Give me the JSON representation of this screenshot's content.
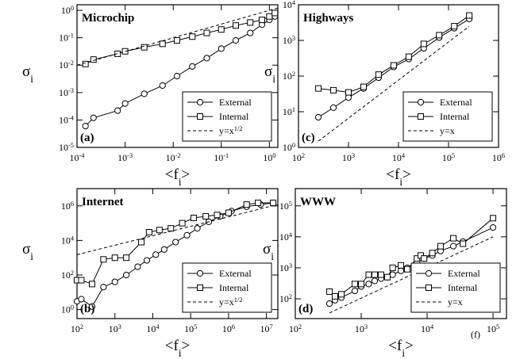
{
  "chart_data": [
    {
      "type": "line",
      "title": "Microchip",
      "panel_label": "(a)",
      "x_label": "<f_{i}>",
      "y_label": "σ_{i}",
      "xscale": "log",
      "yscale": "log",
      "legend": "lower right",
      "xlim": [
        0.0001,
        1.5
      ],
      "ylim": [
        1e-05,
        1.6
      ],
      "xticks": [
        {
          "value": 0.0001,
          "label": "10^{-4}"
        },
        {
          "value": 0.001,
          "label": "10^{-3}"
        },
        {
          "value": 0.01,
          "label": "10^{-2}"
        },
        {
          "value": 0.1,
          "label": "10^{-1}"
        },
        {
          "value": 1,
          "label": "10^{0}"
        }
      ],
      "yticks": [
        {
          "value": 1e-05,
          "label": "10^{-5}"
        },
        {
          "value": 0.0001,
          "label": "10^{-4}"
        },
        {
          "value": 0.001,
          "label": "10^{-3}"
        },
        {
          "value": 0.01,
          "label": "10^{-2}"
        },
        {
          "value": 0.1,
          "label": "10^{-1}"
        },
        {
          "value": 1,
          "label": "10^{0}"
        }
      ],
      "series": [
        {
          "name": "External",
          "color": "#000000",
          "marker": "circle",
          "x": [
            0.00015,
            0.00022,
            0.0007,
            0.001,
            0.0025,
            0.006,
            0.012,
            0.025,
            0.05,
            0.1,
            0.2,
            0.4,
            0.7,
            1.0,
            1.3
          ],
          "values": [
            6e-05,
            0.00012,
            0.00022,
            0.0004,
            0.0009,
            0.0018,
            0.004,
            0.009,
            0.018,
            0.04,
            0.08,
            0.15,
            0.3,
            0.45,
            0.6
          ]
        },
        {
          "name": "Internal",
          "color": "#000000",
          "marker": "square",
          "x": [
            0.00015,
            0.00022,
            0.0007,
            0.001,
            0.0025,
            0.006,
            0.012,
            0.025,
            0.05,
            0.1,
            0.2,
            0.4,
            0.7,
            1.0,
            1.3
          ],
          "values": [
            0.011,
            0.016,
            0.026,
            0.032,
            0.045,
            0.06,
            0.08,
            0.11,
            0.15,
            0.2,
            0.28,
            0.36,
            0.45,
            0.6,
            0.8
          ]
        },
        {
          "name": "y=x^{1/2}",
          "color": "#000000",
          "dash": true,
          "x": [
            0.0001,
            1.5
          ],
          "values": [
            0.01,
            1.22
          ]
        }
      ]
    },
    {
      "type": "line",
      "title": "Internet",
      "panel_label": "(b)",
      "x_label": "<f_{i}>",
      "y_label": "σ_{i}",
      "xscale": "log",
      "yscale": "log",
      "legend": "lower right",
      "xlim": [
        100,
        20000000
      ],
      "ylim": [
        0.3,
        10000000
      ],
      "xticks": [
        {
          "value": 100,
          "label": "10^{2}"
        },
        {
          "value": 1000,
          "label": "10^{3}"
        },
        {
          "value": 10000,
          "label": "10^{4}"
        },
        {
          "value": 100000,
          "label": "10^{5}"
        },
        {
          "value": 1000000,
          "label": "10^{6}"
        },
        {
          "value": 10000000,
          "label": "10^{7}"
        }
      ],
      "yticks": [
        {
          "value": 1,
          "label": "10^{0}"
        },
        {
          "value": 100,
          "label": "10^{2}"
        },
        {
          "value": 10000,
          "label": "10^{4}"
        },
        {
          "value": 1000000,
          "label": "10^{6}"
        }
      ],
      "series": [
        {
          "name": "External",
          "color": "#000000",
          "marker": "circle",
          "x": [
            100,
            130,
            250,
            500,
            1000,
            2000,
            4000,
            7000,
            12000,
            20000,
            40000,
            80000,
            150000,
            300000,
            600000,
            1200000,
            3000000,
            7000000,
            15000000
          ],
          "values": [
            3,
            4,
            1.5,
            20,
            40,
            100,
            300,
            700,
            1500,
            3000,
            8000,
            20000,
            50000,
            120000,
            250000,
            500000,
            900000,
            1200000,
            1500000
          ]
        },
        {
          "name": "Internal",
          "color": "#000000",
          "marker": "square",
          "x": [
            100,
            130,
            250,
            500,
            1000,
            2000,
            5000,
            8000,
            15000,
            30000,
            60000,
            120000,
            250000,
            500000,
            1000000,
            3000000,
            6000000,
            15000000
          ],
          "values": [
            50,
            50,
            30,
            800,
            1000,
            1000,
            8000,
            30000,
            40000,
            50000,
            100000,
            200000,
            250000,
            300000,
            400000,
            1200000,
            1500000,
            1500000
          ]
        },
        {
          "name": "y=x^{1/2}",
          "color": "#000000",
          "dash": true,
          "x": [
            100,
            20000000
          ],
          "values": [
            1500,
            1200000
          ]
        }
      ]
    },
    {
      "type": "line",
      "title": "Highways",
      "panel_label": "(c)",
      "x_label": "<f_{i}>",
      "y_label": "σ_{i}",
      "xscale": "log",
      "yscale": "log",
      "legend": "lower right",
      "xlim": [
        100,
        1000000
      ],
      "ylim": [
        1,
        10000
      ],
      "xticks": [
        {
          "value": 100,
          "label": "10^{2}"
        },
        {
          "value": 1000,
          "label": "10^{3}"
        },
        {
          "value": 10000,
          "label": "10^{4}"
        },
        {
          "value": 100000,
          "label": "10^{5}"
        },
        {
          "value": 1000000,
          "label": "10^{6}"
        }
      ],
      "yticks": [
        {
          "value": 1,
          "label": "10^{0}"
        },
        {
          "value": 10,
          "label": "10^{1}"
        },
        {
          "value": 100,
          "label": "10^{2}"
        },
        {
          "value": 1000,
          "label": "10^{3}"
        },
        {
          "value": 10000,
          "label": "10^{4}"
        }
      ],
      "series": [
        {
          "name": "External",
          "color": "#000000",
          "marker": "circle",
          "x": [
            250,
            500,
            1000,
            2000,
            4000,
            8000,
            16000,
            32000,
            65000,
            130000,
            260000
          ],
          "values": [
            7,
            13,
            25,
            45,
            90,
            180,
            300,
            600,
            1200,
            2200,
            4000
          ]
        },
        {
          "name": "Internal",
          "color": "#000000",
          "marker": "square",
          "x": [
            250,
            500,
            1000,
            2000,
            4000,
            8000,
            16000,
            32000,
            65000,
            130000,
            260000
          ],
          "values": [
            45,
            40,
            35,
            50,
            110,
            200,
            350,
            800,
            1400,
            2500,
            5000
          ]
        },
        {
          "name": "y=x",
          "color": "#000000",
          "dash": true,
          "x": [
            250,
            260000
          ],
          "values": [
            1.5,
            2500
          ]
        }
      ]
    },
    {
      "type": "line",
      "title": "WWW",
      "panel_label": "(d)",
      "annotation": "(f)",
      "x_label": "<f_{i}>",
      "y_label": "σ_{i}",
      "xscale": "log",
      "yscale": "log",
      "legend": "lower right",
      "xlim": [
        100,
        160000
      ],
      "ylim": [
        23,
        360000
      ],
      "xticks": [
        {
          "value": 100,
          "label": "10^{2}"
        },
        {
          "value": 1000,
          "label": "10^{3}"
        },
        {
          "value": 10000,
          "label": "10^{4}"
        },
        {
          "value": 100000,
          "label": "10^{5}"
        }
      ],
      "yticks": [
        {
          "value": 100,
          "label": "10^{2}"
        },
        {
          "value": 1000,
          "label": "10^{3}"
        },
        {
          "value": 10000,
          "label": "10^{4}"
        },
        {
          "value": 100000,
          "label": "10^{5}"
        }
      ],
      "series": [
        {
          "name": "External",
          "color": "#000000",
          "marker": "circle",
          "x": [
            330,
            400,
            500,
            800,
            1000,
            1300,
            1600,
            2000,
            2500,
            3000,
            4000,
            5000,
            7000,
            9000,
            12000,
            16000,
            25000,
            35000,
            100000
          ],
          "values": [
            70,
            90,
            110,
            180,
            250,
            300,
            380,
            450,
            500,
            600,
            800,
            1000,
            1500,
            2000,
            2500,
            3500,
            5000,
            7000,
            20000
          ]
        },
        {
          "name": "Internal",
          "color": "#000000",
          "marker": "square",
          "x": [
            330,
            400,
            500,
            800,
            1000,
            1300,
            1600,
            2000,
            2500,
            3000,
            4000,
            5000,
            7000,
            8000,
            9000,
            12000,
            16000,
            25000,
            35000,
            100000
          ],
          "values": [
            170,
            120,
            140,
            300,
            300,
            600,
            600,
            600,
            500,
            1000,
            1200,
            900,
            2000,
            2500,
            2000,
            3000,
            5000,
            9000,
            6000,
            40000
          ]
        },
        {
          "name": "y=x",
          "color": "#000000",
          "dash": true,
          "x": [
            330,
            100000
          ],
          "values": [
            35,
            10000
          ]
        }
      ]
    }
  ]
}
